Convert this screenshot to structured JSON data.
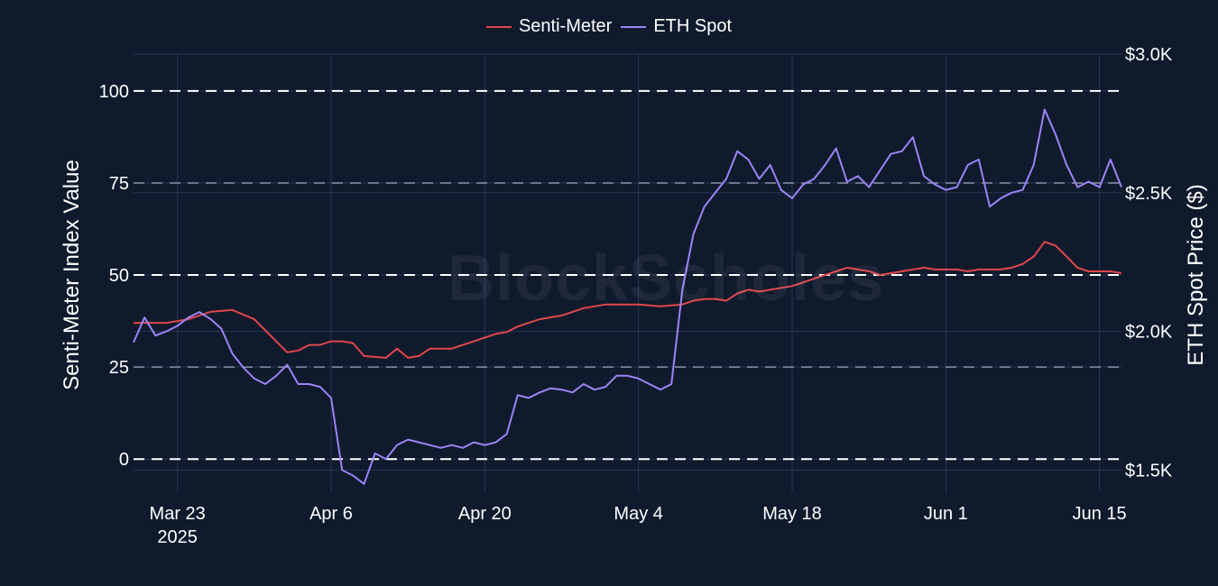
{
  "legend": [
    {
      "label": "Senti-Meter",
      "color": "#e0474c"
    },
    {
      "label": "ETH Spot",
      "color": "#9b84f4"
    }
  ],
  "watermark": "BlockScholes",
  "chart_data": {
    "type": "line",
    "xlabel": "",
    "ylabel": "Senti-Meter Index Value",
    "y2label": "ETH Spot Price ($)",
    "x_ticks": [
      {
        "date": "2025-03-23",
        "label": "Mar 23",
        "sublabel": "2025"
      },
      {
        "date": "2025-04-06",
        "label": "Apr 6"
      },
      {
        "date": "2025-04-20",
        "label": "Apr 20"
      },
      {
        "date": "2025-05-04",
        "label": "May 4"
      },
      {
        "date": "2025-05-18",
        "label": "May 18"
      },
      {
        "date": "2025-06-01",
        "label": "Jun 1"
      },
      {
        "date": "2025-06-15",
        "label": "Jun 15"
      }
    ],
    "xlim": [
      "2025-03-19",
      "2025-06-17"
    ],
    "ylim": [
      -9,
      110
    ],
    "y_ticks": [
      0,
      25,
      50,
      75,
      100
    ],
    "y2lim": [
      1420,
      3000
    ],
    "y2_ticks": [
      {
        "value": 1500,
        "label": "$1.5K"
      },
      {
        "value": 2000,
        "label": "$2.0K"
      },
      {
        "value": 2500,
        "label": "$2.5K"
      },
      {
        "value": 3000,
        "label": "$3.0K"
      }
    ],
    "reference_lines": [
      0,
      25,
      50,
      75,
      100
    ],
    "grid": true,
    "legend_position": "top-center",
    "series": [
      {
        "name": "Senti-Meter",
        "axis": "left",
        "color": "#e0474c",
        "points": [
          [
            "2025-03-19",
            37
          ],
          [
            "2025-03-22",
            37
          ],
          [
            "2025-03-24",
            38
          ],
          [
            "2025-03-26",
            40
          ],
          [
            "2025-03-28",
            40.5
          ],
          [
            "2025-03-30",
            38
          ],
          [
            "2025-04-02",
            29
          ],
          [
            "2025-04-03",
            29.5
          ],
          [
            "2025-04-04",
            31
          ],
          [
            "2025-04-05",
            31
          ],
          [
            "2025-04-06",
            32
          ],
          [
            "2025-04-07",
            32
          ],
          [
            "2025-04-08",
            31.5
          ],
          [
            "2025-04-09",
            28
          ],
          [
            "2025-04-11",
            27.5
          ],
          [
            "2025-04-12",
            30
          ],
          [
            "2025-04-13",
            27.5
          ],
          [
            "2025-04-14",
            28
          ],
          [
            "2025-04-15",
            30
          ],
          [
            "2025-04-17",
            30
          ],
          [
            "2025-04-18",
            31
          ],
          [
            "2025-04-19",
            32
          ],
          [
            "2025-04-20",
            33
          ],
          [
            "2025-04-21",
            34
          ],
          [
            "2025-04-22",
            34.5
          ],
          [
            "2025-04-23",
            36
          ],
          [
            "2025-04-24",
            37
          ],
          [
            "2025-04-25",
            38
          ],
          [
            "2025-04-26",
            38.5
          ],
          [
            "2025-04-27",
            39
          ],
          [
            "2025-04-28",
            40
          ],
          [
            "2025-04-29",
            41
          ],
          [
            "2025-04-30",
            41.5
          ],
          [
            "2025-05-01",
            42
          ],
          [
            "2025-05-02",
            42
          ],
          [
            "2025-05-04",
            42
          ],
          [
            "2025-05-06",
            41.5
          ],
          [
            "2025-05-08",
            42
          ],
          [
            "2025-05-09",
            43
          ],
          [
            "2025-05-10",
            43.5
          ],
          [
            "2025-05-11",
            43.5
          ],
          [
            "2025-05-12",
            43
          ],
          [
            "2025-05-13",
            45
          ],
          [
            "2025-05-14",
            46
          ],
          [
            "2025-05-15",
            45.5
          ],
          [
            "2025-05-16",
            46
          ],
          [
            "2025-05-17",
            46.5
          ],
          [
            "2025-05-18",
            47
          ],
          [
            "2025-05-19",
            48
          ],
          [
            "2025-05-20",
            49
          ],
          [
            "2025-05-21",
            50
          ],
          [
            "2025-05-22",
            51
          ],
          [
            "2025-05-23",
            52
          ],
          [
            "2025-05-24",
            51.5
          ],
          [
            "2025-05-25",
            51
          ],
          [
            "2025-05-26",
            50
          ],
          [
            "2025-05-27",
            50.5
          ],
          [
            "2025-05-28",
            51
          ],
          [
            "2025-05-29",
            51.5
          ],
          [
            "2025-05-30",
            52
          ],
          [
            "2025-05-31",
            51.5
          ],
          [
            "2025-06-02",
            51.5
          ],
          [
            "2025-06-03",
            51
          ],
          [
            "2025-06-04",
            51.5
          ],
          [
            "2025-06-06",
            51.5
          ],
          [
            "2025-06-07",
            52
          ],
          [
            "2025-06-08",
            53
          ],
          [
            "2025-06-09",
            55
          ],
          [
            "2025-06-10",
            59
          ],
          [
            "2025-06-11",
            58
          ],
          [
            "2025-06-12",
            55
          ],
          [
            "2025-06-13",
            52
          ],
          [
            "2025-06-14",
            51
          ],
          [
            "2025-06-15",
            51
          ],
          [
            "2025-06-16",
            51
          ],
          [
            "2025-06-17",
            50.5
          ]
        ]
      },
      {
        "name": "ETH Spot",
        "axis": "right",
        "color": "#9b84f4",
        "points": [
          [
            "2025-03-19",
            1960
          ],
          [
            "2025-03-20",
            2050
          ],
          [
            "2025-03-21",
            1985
          ],
          [
            "2025-03-22",
            2000
          ],
          [
            "2025-03-23",
            2020
          ],
          [
            "2025-03-24",
            2050
          ],
          [
            "2025-03-25",
            2070
          ],
          [
            "2025-03-26",
            2045
          ],
          [
            "2025-03-27",
            2010
          ],
          [
            "2025-03-28",
            1920
          ],
          [
            "2025-03-29",
            1870
          ],
          [
            "2025-03-30",
            1830
          ],
          [
            "2025-03-31",
            1810
          ],
          [
            "2025-04-01",
            1840
          ],
          [
            "2025-04-02",
            1880
          ],
          [
            "2025-04-03",
            1810
          ],
          [
            "2025-04-04",
            1810
          ],
          [
            "2025-04-05",
            1800
          ],
          [
            "2025-04-06",
            1760
          ],
          [
            "2025-04-07",
            1500
          ],
          [
            "2025-04-08",
            1480
          ],
          [
            "2025-04-09",
            1450
          ],
          [
            "2025-04-10",
            1560
          ],
          [
            "2025-04-11",
            1540
          ],
          [
            "2025-04-12",
            1590
          ],
          [
            "2025-04-13",
            1610
          ],
          [
            "2025-04-14",
            1600
          ],
          [
            "2025-04-15",
            1590
          ],
          [
            "2025-04-16",
            1580
          ],
          [
            "2025-04-17",
            1590
          ],
          [
            "2025-04-18",
            1580
          ],
          [
            "2025-04-19",
            1600
          ],
          [
            "2025-04-20",
            1590
          ],
          [
            "2025-04-21",
            1600
          ],
          [
            "2025-04-22",
            1630
          ],
          [
            "2025-04-23",
            1770
          ],
          [
            "2025-04-24",
            1760
          ],
          [
            "2025-04-25",
            1780
          ],
          [
            "2025-04-26",
            1795
          ],
          [
            "2025-04-27",
            1790
          ],
          [
            "2025-04-28",
            1780
          ],
          [
            "2025-04-29",
            1810
          ],
          [
            "2025-04-30",
            1790
          ],
          [
            "2025-05-01",
            1800
          ],
          [
            "2025-05-02",
            1840
          ],
          [
            "2025-05-03",
            1840
          ],
          [
            "2025-05-04",
            1830
          ],
          [
            "2025-05-05",
            1810
          ],
          [
            "2025-05-06",
            1790
          ],
          [
            "2025-05-07",
            1810
          ],
          [
            "2025-05-08",
            2150
          ],
          [
            "2025-05-09",
            2350
          ],
          [
            "2025-05-10",
            2450
          ],
          [
            "2025-05-11",
            2500
          ],
          [
            "2025-05-12",
            2550
          ],
          [
            "2025-05-13",
            2650
          ],
          [
            "2025-05-14",
            2620
          ],
          [
            "2025-05-15",
            2550
          ],
          [
            "2025-05-16",
            2600
          ],
          [
            "2025-05-17",
            2510
          ],
          [
            "2025-05-18",
            2480
          ],
          [
            "2025-05-19",
            2530
          ],
          [
            "2025-05-20",
            2550
          ],
          [
            "2025-05-21",
            2600
          ],
          [
            "2025-05-22",
            2660
          ],
          [
            "2025-05-23",
            2540
          ],
          [
            "2025-05-24",
            2560
          ],
          [
            "2025-05-25",
            2520
          ],
          [
            "2025-05-26",
            2580
          ],
          [
            "2025-05-27",
            2640
          ],
          [
            "2025-05-28",
            2650
          ],
          [
            "2025-05-29",
            2700
          ],
          [
            "2025-05-30",
            2560
          ],
          [
            "2025-05-31",
            2530
          ],
          [
            "2025-06-01",
            2510
          ],
          [
            "2025-06-02",
            2520
          ],
          [
            "2025-06-03",
            2600
          ],
          [
            "2025-06-04",
            2620
          ],
          [
            "2025-06-05",
            2450
          ],
          [
            "2025-06-06",
            2480
          ],
          [
            "2025-06-07",
            2500
          ],
          [
            "2025-06-08",
            2510
          ],
          [
            "2025-06-09",
            2600
          ],
          [
            "2025-06-10",
            2800
          ],
          [
            "2025-06-11",
            2710
          ],
          [
            "2025-06-12",
            2600
          ],
          [
            "2025-06-13",
            2520
          ],
          [
            "2025-06-14",
            2540
          ],
          [
            "2025-06-15",
            2520
          ],
          [
            "2025-06-16",
            2620
          ],
          [
            "2025-06-17",
            2520
          ]
        ]
      }
    ]
  }
}
